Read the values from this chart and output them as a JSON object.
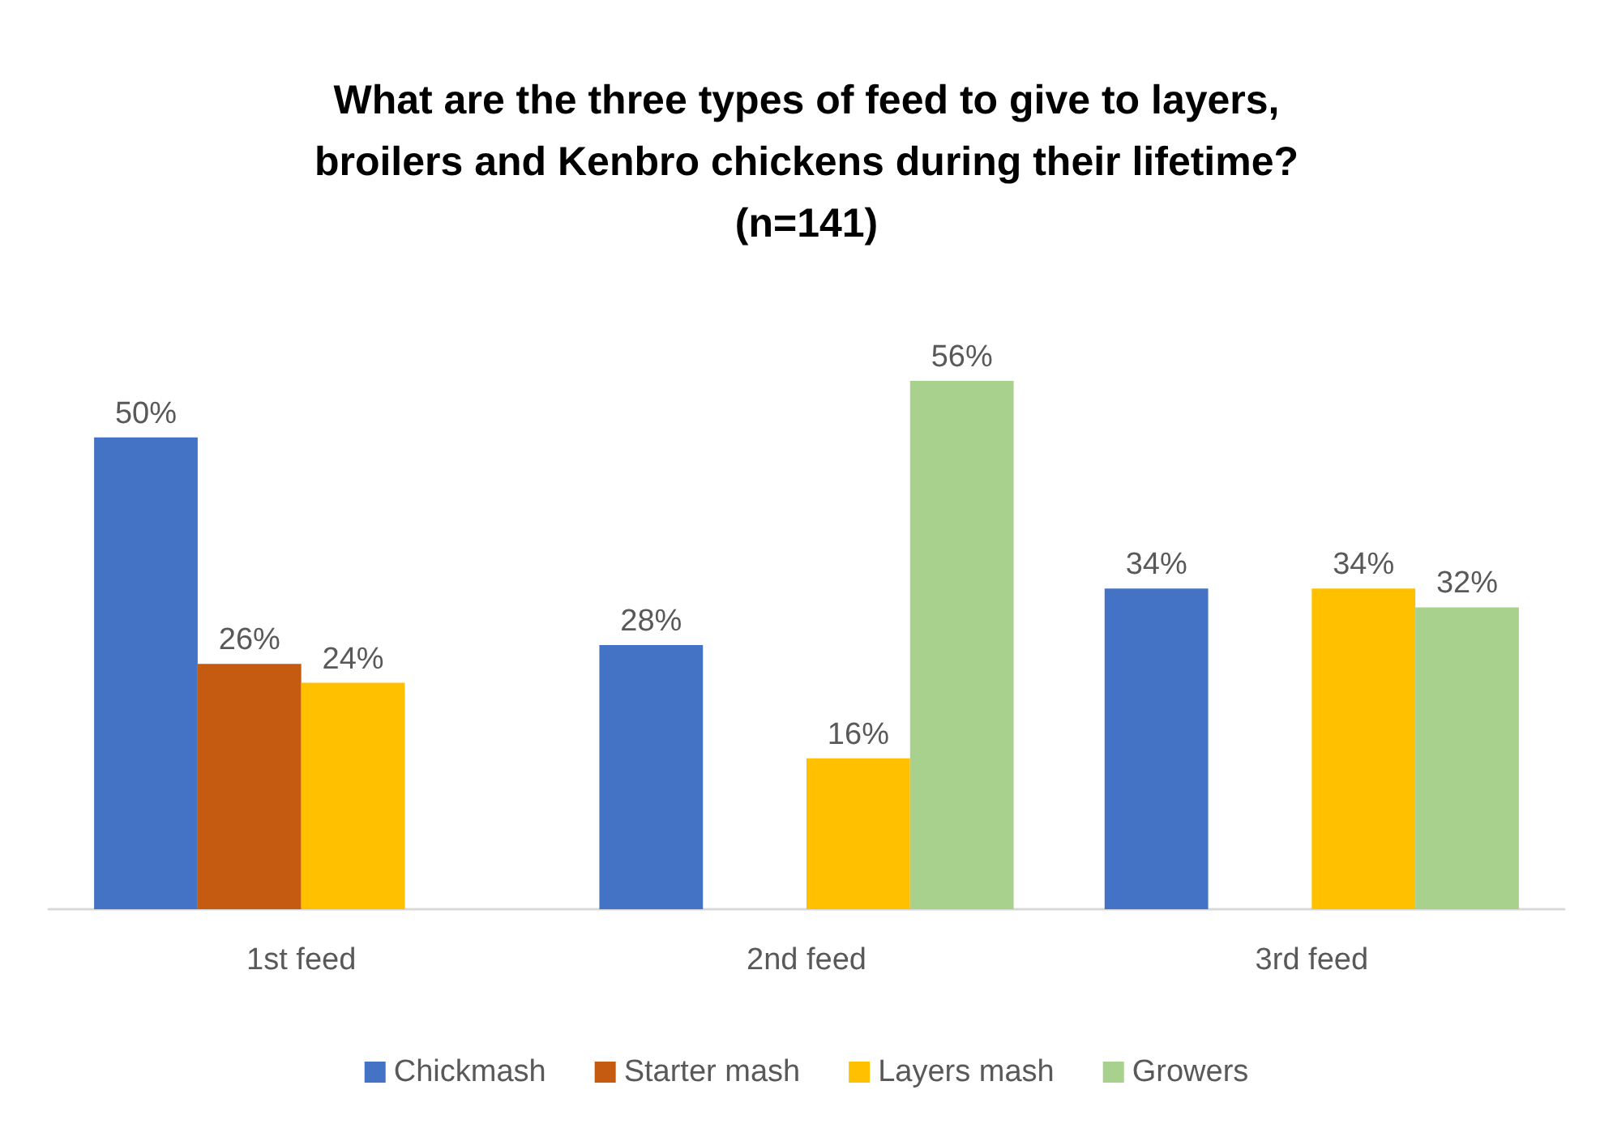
{
  "chart_data": {
    "type": "bar",
    "title": "What are the three types of feed to give to layers,\nbroilers and Kenbro chickens during their lifetime?\n(n=141)",
    "categories": [
      "1st feed",
      "2nd feed",
      "3rd feed"
    ],
    "series": [
      {
        "name": "Chickmash",
        "color": "#4472c4",
        "values": [
          50,
          28,
          34
        ],
        "value_labels": [
          "50%",
          "28%",
          "34%"
        ]
      },
      {
        "name": "Starter mash",
        "color": "#c55a11",
        "values": [
          26,
          null,
          null
        ],
        "value_labels": [
          "26%",
          null,
          null
        ]
      },
      {
        "name": "Layers mash",
        "color": "#ffc000",
        "values": [
          24,
          16,
          34
        ],
        "value_labels": [
          "24%",
          "16%",
          "34%"
        ]
      },
      {
        "name": "Growers",
        "color": "#a9d18e",
        "values": [
          null,
          56,
          32
        ],
        "value_labels": [
          null,
          "56%",
          "32%"
        ]
      }
    ],
    "legend": "bottom"
  }
}
